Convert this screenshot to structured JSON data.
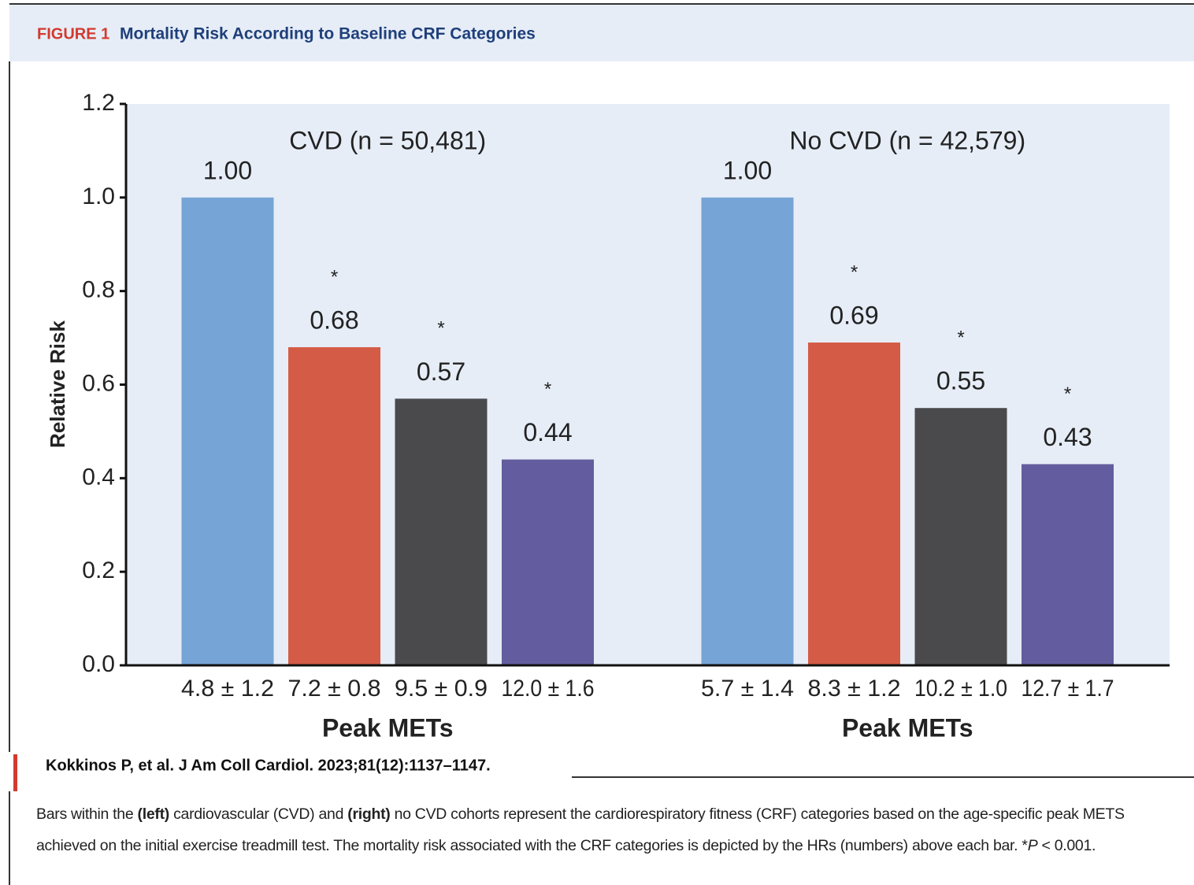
{
  "chart_data": {
    "type": "bar",
    "figure_label": "FIGURE 1",
    "title": "Mortality Risk According to Baseline CRF Categories",
    "y_label": "Relative Risk",
    "ylim": [
      0,
      1.2
    ],
    "yticks": [
      {
        "value": 0,
        "label": "0.0"
      },
      {
        "value": 0.2,
        "label": "0.2"
      },
      {
        "value": 0.4,
        "label": "0.4"
      },
      {
        "value": 0.6,
        "label": "0.6"
      },
      {
        "value": 0.8,
        "label": "0.8"
      },
      {
        "value": 1,
        "label": "1.0"
      },
      {
        "value": 1.2,
        "label": "1.2"
      }
    ],
    "colors": [
      "#77a4d6",
      "#d45c47",
      "#4a4a4c",
      "#635c9e"
    ],
    "panels": [
      {
        "title": "CVD (n = 50,481)",
        "x_label": "Peak METs",
        "categories": [
          "4.8 ± 1.2",
          "7.2 ± 0.8",
          "9.5 ± 0.9",
          "12.0 ± 1.6"
        ],
        "values": [
          1,
          0.68,
          0.57,
          0.44
        ],
        "value_labels": [
          "1.00",
          "0.68",
          "0.57",
          "0.44"
        ],
        "annotations": [
          null,
          "*",
          "*",
          "*"
        ]
      },
      {
        "title": "No CVD (n = 42,579)",
        "x_label": "Peak METs",
        "categories": [
          "5.7 ± 1.4",
          "8.3 ± 1.2",
          "10.2 ± 1.0",
          "12.7 ± 1.7"
        ],
        "values": [
          1,
          0.69,
          0.55,
          0.43
        ],
        "value_labels": [
          "1.00",
          "0.69",
          "0.55",
          "0.43"
        ],
        "annotations": [
          null,
          "*",
          "*",
          "*"
        ]
      }
    ]
  },
  "citation": "Kokkinos P, et al. J Am Coll Cardiol. 2023;81(12):1137–1147.",
  "caption": [
    "Bars within the ",
    "(left)",
    " cardiovascular (CVD) and ",
    "(right)",
    " no CVD cohorts represent the cardiorespiratory fitness (CRF) categories based on the age-specific peak METS achieved on the initial exercise treadmill test. The mortality risk associated with the CRF categories is depicted by the HRs (numbers) above each bar. *",
    "P",
    " < 0.001."
  ]
}
